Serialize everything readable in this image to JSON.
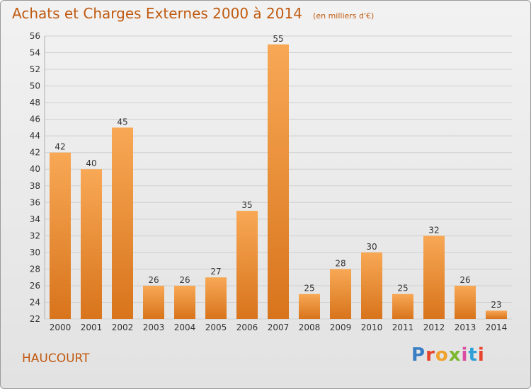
{
  "page": {
    "title": "Achats et Charges Externes 2000 à 2014",
    "subtitle": "(en milliers d'€)",
    "place_name": "HAUCOURT",
    "logo_text": "Proxiti"
  },
  "colors": {
    "title": "#c05a10",
    "bar_light": "#f8a855",
    "bar_dark": "#d8741c",
    "grid": "#cfcfcf",
    "axis_text": "#333333"
  },
  "chart_data": {
    "type": "bar",
    "title": "Achats et Charges Externes 2000 à 2014",
    "subtitle": "(en milliers d'€)",
    "xlabel": "",
    "ylabel": "",
    "categories": [
      "2000",
      "2001",
      "2002",
      "2003",
      "2004",
      "2005",
      "2006",
      "2007",
      "2008",
      "2009",
      "2010",
      "2011",
      "2012",
      "2013",
      "2014"
    ],
    "values": [
      42,
      40,
      45,
      26,
      26,
      27,
      35,
      55,
      25,
      28,
      30,
      25,
      32,
      26,
      23
    ],
    "ylim": [
      22,
      56
    ],
    "yticks": [
      22,
      24,
      26,
      28,
      30,
      32,
      34,
      36,
      38,
      40,
      42,
      44,
      46,
      48,
      50,
      52,
      54,
      56
    ],
    "grid": true,
    "legend": "none"
  }
}
